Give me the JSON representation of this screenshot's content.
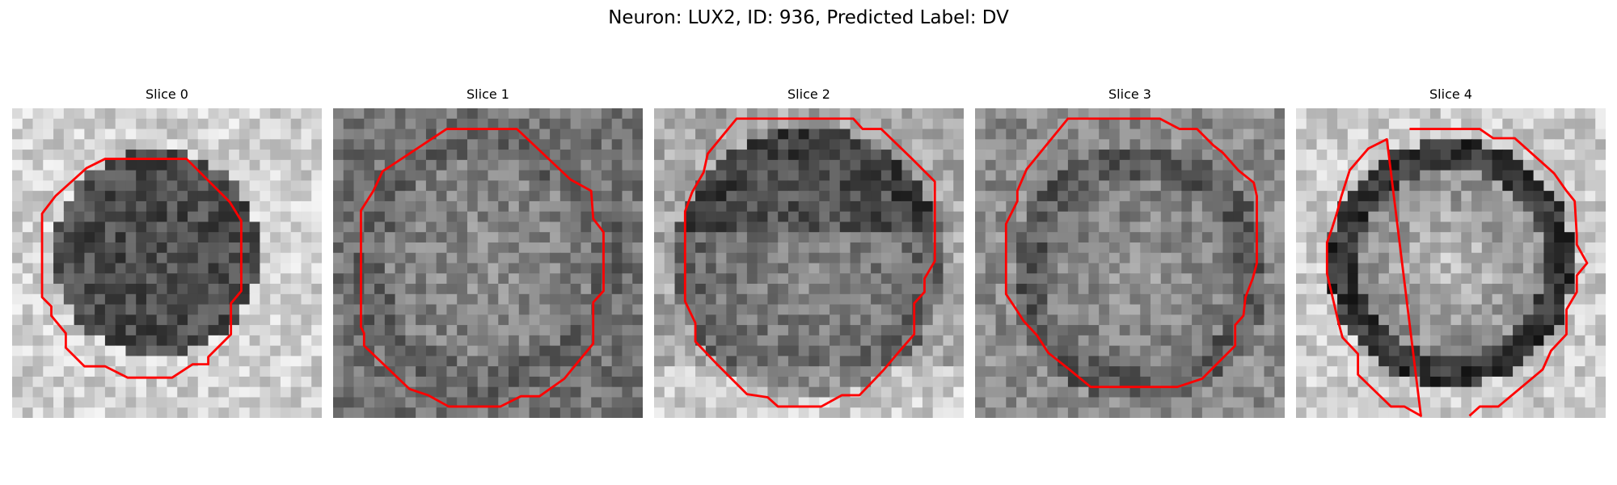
{
  "figure": {
    "title": "Neuron: LUX2, ID: 936, Predicted Label: DV"
  },
  "panels": [
    {
      "title": "Slice 0",
      "tone": "dark-core",
      "contour_color": "#ff0000"
    },
    {
      "title": "Slice 1",
      "tone": "mottled",
      "contour_color": "#ff0000"
    },
    {
      "title": "Slice 2",
      "tone": "dark-top-bright-bottom",
      "contour_color": "#ff0000"
    },
    {
      "title": "Slice 3",
      "tone": "mottled-dark-edge",
      "contour_color": "#ff0000"
    },
    {
      "title": "Slice 4",
      "tone": "dark-rim-bright-core",
      "contour_color": "#ff0000"
    }
  ],
  "colors": {
    "contour": "#ff0000",
    "colormap": "grayscale"
  }
}
